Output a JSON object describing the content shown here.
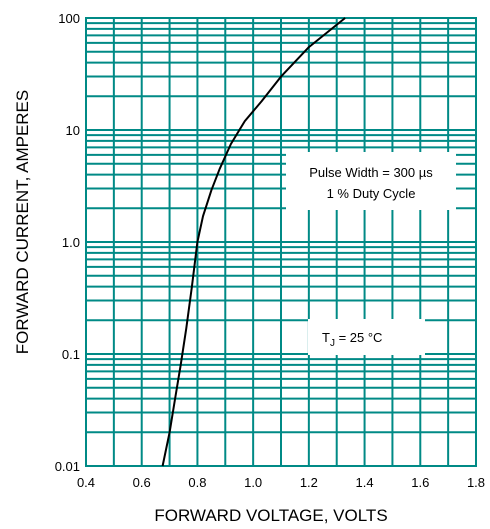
{
  "chart_data": {
    "type": "line",
    "xlabel": "FORWARD VOLTAGE, VOLTS",
    "ylabel": "FORWARD CURRENT, AMPERES",
    "xlim": [
      0.4,
      1.8
    ],
    "ylim": [
      0.01,
      100
    ],
    "yscale": "log",
    "grid": true,
    "x_ticks": [
      "0.4",
      "0.6",
      "0.8",
      "1.0",
      "1.2",
      "1.4",
      "1.6",
      "1.8"
    ],
    "y_ticks": [
      "0.01",
      "0.1",
      "1.0",
      "10",
      "100"
    ],
    "series": [
      {
        "x": [
          0.675,
          0.7,
          0.72,
          0.74,
          0.76,
          0.78,
          0.8,
          0.82,
          0.85,
          0.88,
          0.92,
          0.97,
          1.03,
          1.1,
          1.2,
          1.33
        ],
        "y": [
          0.01,
          0.02,
          0.04,
          0.08,
          0.17,
          0.4,
          1.0,
          1.7,
          2.9,
          4.5,
          7.5,
          12,
          18,
          30,
          55,
          100
        ]
      }
    ],
    "annotations": {
      "pulse_line1": "Pulse Width = 300 µs",
      "pulse_line2": "1 % Duty Cycle",
      "tj_prefix": "T",
      "tj_sub": "J",
      "tj_rest": " = 25 °C"
    },
    "colors": {
      "grid": "#008a86",
      "curve": "#000000",
      "text": "#000000"
    }
  }
}
